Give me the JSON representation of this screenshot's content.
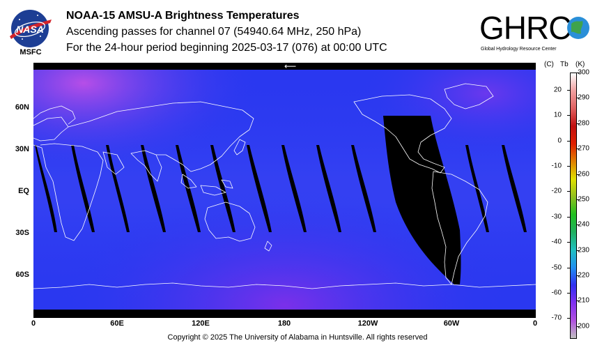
{
  "header": {
    "nasa_text": "NASA",
    "center_label": "MSFC",
    "title": "NOAA-15 AMSU-A Brightness Temperatures",
    "subtitle": "Ascending passes for channel 07 (54940.64 MHz, 250 hPa)",
    "period": "For the 24-hour period beginning 2025-03-17 (076) at 00:00 UTC",
    "ghrc_text": "GHRC",
    "ghrc_tagline": "Global Hydrology Resource Center"
  },
  "map": {
    "arrow_glyph": "⟵",
    "lat_labels": [
      "60N",
      "30N",
      "EQ",
      "30S",
      "60S"
    ],
    "lon_labels": [
      "0",
      "60E",
      "120E",
      "180",
      "120W",
      "60W",
      "0"
    ],
    "background_color": "#2a38f0",
    "land_outline_color": "#ffffff",
    "gap_color": "#000000"
  },
  "colorbar": {
    "unit_c": "(C)",
    "unit_tb": "Tb",
    "unit_k": "(K)",
    "celsius_labels": [
      "20",
      "10",
      "0",
      "-10",
      "-20",
      "-30",
      "-40",
      "-50",
      "-60",
      "-70"
    ],
    "kelvin_labels": [
      "300",
      "290",
      "280",
      "270",
      "260",
      "250",
      "240",
      "230",
      "220",
      "210",
      "200"
    ],
    "range_k": [
      195,
      300
    ],
    "colors": [
      "#c0c0c0",
      "#b050e0",
      "#8030f0",
      "#3030f0",
      "#2090f0",
      "#20c0c0",
      "#20b060",
      "#20c020",
      "#90c020",
      "#e0e000",
      "#e08000",
      "#e02000",
      "#c01010",
      "#e06060",
      "#f0a0a0",
      "#ffffff"
    ]
  },
  "footer": {
    "copyright": "Copyright © 2025 The University of Alabama in Huntsville.  All rights reserved"
  }
}
